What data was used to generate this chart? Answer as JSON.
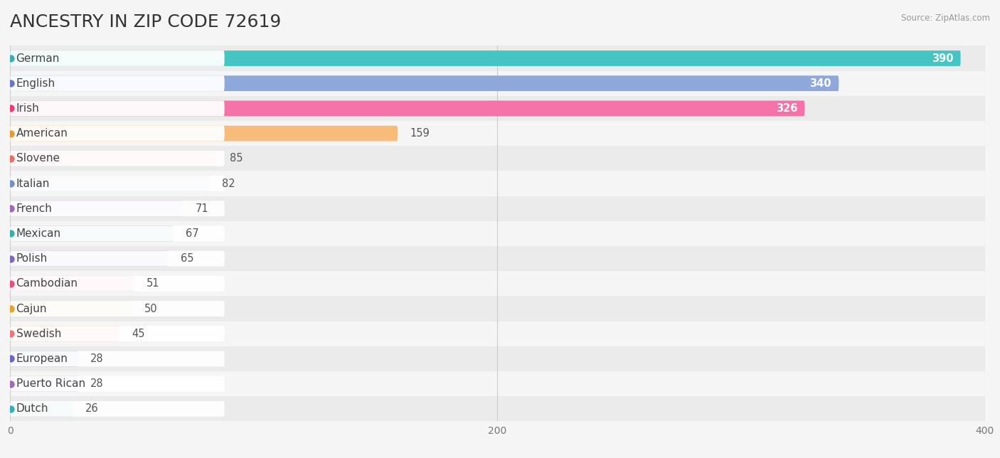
{
  "title": "ANCESTRY IN ZIP CODE 72619",
  "source": "Source: ZipAtlas.com",
  "categories": [
    "German",
    "English",
    "Irish",
    "American",
    "Slovene",
    "Italian",
    "French",
    "Mexican",
    "Polish",
    "Cambodian",
    "Cajun",
    "Swedish",
    "European",
    "Puerto Rican",
    "Dutch"
  ],
  "values": [
    390,
    340,
    326,
    159,
    85,
    82,
    71,
    67,
    65,
    51,
    50,
    45,
    28,
    28,
    26
  ],
  "bar_colors": [
    "#45C4C4",
    "#8FA8DC",
    "#F472A8",
    "#F7BC7A",
    "#F2A898",
    "#A8C0E2",
    "#C4A8D8",
    "#6DC4C4",
    "#ACAAD8",
    "#F888B0",
    "#F7CA98",
    "#F2B0A8",
    "#9CA4DC",
    "#C4A8D8",
    "#76C4C4"
  ],
  "dot_colors": [
    "#3AAFAF",
    "#6878C0",
    "#EE3C7A",
    "#E89A30",
    "#E87060",
    "#7890C8",
    "#A068B8",
    "#3AAFAF",
    "#8068C0",
    "#EE4888",
    "#E8A030",
    "#E87878",
    "#6868C0",
    "#A068B8",
    "#3AAFAF"
  ],
  "xlim": [
    0,
    400
  ],
  "xticks": [
    0,
    200,
    400
  ],
  "background_color": "#f5f5f5",
  "row_bg_colors": [
    "#ebebeb",
    "#f5f5f5"
  ],
  "title_fontsize": 18,
  "label_fontsize": 11,
  "value_fontsize": 10.5
}
